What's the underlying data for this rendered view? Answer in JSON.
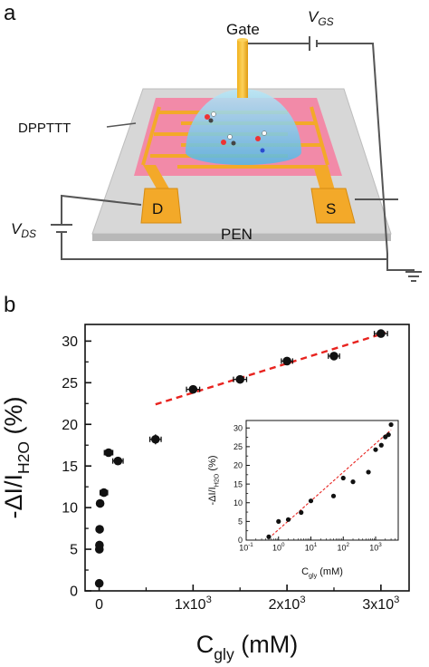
{
  "panel_a": {
    "label": "a",
    "gate_label": "Gate",
    "vgs_label": "V",
    "vgs_sub": "GS",
    "vds_label": "V",
    "vds_sub": "DS",
    "film_label": "DPPTTT",
    "substrate_label": "PEN",
    "drain_label": "D",
    "source_label": "S"
  },
  "panel_b": {
    "label": "b"
  },
  "chart_data": [
    {
      "type": "scatter",
      "name": "main",
      "xlabel_main": "C",
      "xlabel_sub": "gly",
      "xlabel_unit": " (mM)",
      "ylabel_prefix": "-ΔI/I",
      "ylabel_sub": "H2O",
      "ylabel_unit": " (%)",
      "xlim": [
        -150,
        3300
      ],
      "ylim": [
        0,
        32
      ],
      "xticks": [
        {
          "v": 0,
          "base": "0",
          "exp": ""
        },
        {
          "v": 1000,
          "base": "1x10",
          "exp": "3"
        },
        {
          "v": 2000,
          "base": "2x10",
          "exp": "3"
        },
        {
          "v": 3000,
          "base": "3x10",
          "exp": "3"
        }
      ],
      "yticks": [
        0,
        5,
        10,
        15,
        20,
        25,
        30
      ],
      "points": [
        {
          "x": 1,
          "y": 0.9,
          "xerr": 30,
          "yerr": 0.3
        },
        {
          "x": 2,
          "y": 5.0,
          "xerr": 30,
          "yerr": 0.3
        },
        {
          "x": 3,
          "y": 5.5,
          "xerr": 30,
          "yerr": 0.3
        },
        {
          "x": 5,
          "y": 7.4,
          "xerr": 30,
          "yerr": 0.3
        },
        {
          "x": 10,
          "y": 10.5,
          "xerr": 30,
          "yerr": 0.3
        },
        {
          "x": 50,
          "y": 11.8,
          "xerr": 40,
          "yerr": 0.4
        },
        {
          "x": 100,
          "y": 16.6,
          "xerr": 45,
          "yerr": 0.4
        },
        {
          "x": 200,
          "y": 15.6,
          "xerr": 55,
          "yerr": 0.4
        },
        {
          "x": 600,
          "y": 18.2,
          "xerr": 60,
          "yerr": 0.6
        },
        {
          "x": 1000,
          "y": 24.2,
          "xerr": 70,
          "yerr": 0.4
        },
        {
          "x": 1500,
          "y": 25.4,
          "xerr": 70,
          "yerr": 0.4
        },
        {
          "x": 2000,
          "y": 27.6,
          "xerr": 60,
          "yerr": 0.4
        },
        {
          "x": 2500,
          "y": 28.2,
          "xerr": 60,
          "yerr": 0.4
        },
        {
          "x": 3000,
          "y": 30.9,
          "xerr": 70,
          "yerr": 0.3
        }
      ],
      "fit_line": {
        "x": [
          600,
          3050
        ],
        "y": [
          22.4,
          31.0
        ],
        "color": "#e8231f"
      }
    },
    {
      "type": "scatter",
      "name": "inset",
      "xlabel_main": "C",
      "xlabel_sub": "gly",
      "xlabel_unit": " (mM)",
      "ylabel_prefix": "-ΔI/I",
      "ylabel_sub": "H2O",
      "ylabel_unit": " (%)",
      "xscale": "log",
      "xlim": [
        0.1,
        5000
      ],
      "ylim": [
        0,
        32
      ],
      "xticks": [
        {
          "v": 0.1,
          "base": "10",
          "exp": "-1"
        },
        {
          "v": 1,
          "base": "10",
          "exp": "0"
        },
        {
          "v": 10,
          "base": "10",
          "exp": "1"
        },
        {
          "v": 100,
          "base": "10",
          "exp": "2"
        },
        {
          "v": 1000,
          "base": "10",
          "exp": "3"
        }
      ],
      "yticks": [
        0,
        5,
        10,
        15,
        20,
        25,
        30
      ],
      "points": [
        {
          "x": 0.5,
          "y": 0.9
        },
        {
          "x": 1,
          "y": 5.0
        },
        {
          "x": 2,
          "y": 5.5
        },
        {
          "x": 5,
          "y": 7.4
        },
        {
          "x": 10,
          "y": 10.5
        },
        {
          "x": 50,
          "y": 11.8
        },
        {
          "x": 100,
          "y": 16.6
        },
        {
          "x": 200,
          "y": 15.6
        },
        {
          "x": 600,
          "y": 18.2
        },
        {
          "x": 1000,
          "y": 24.2
        },
        {
          "x": 1500,
          "y": 25.4
        },
        {
          "x": 2000,
          "y": 27.6
        },
        {
          "x": 2500,
          "y": 28.2
        },
        {
          "x": 3000,
          "y": 30.9
        }
      ],
      "fit_line": {
        "x": [
          0.5,
          3000
        ],
        "y": [
          0.5,
          29.5
        ],
        "color": "#e8231f"
      }
    }
  ]
}
